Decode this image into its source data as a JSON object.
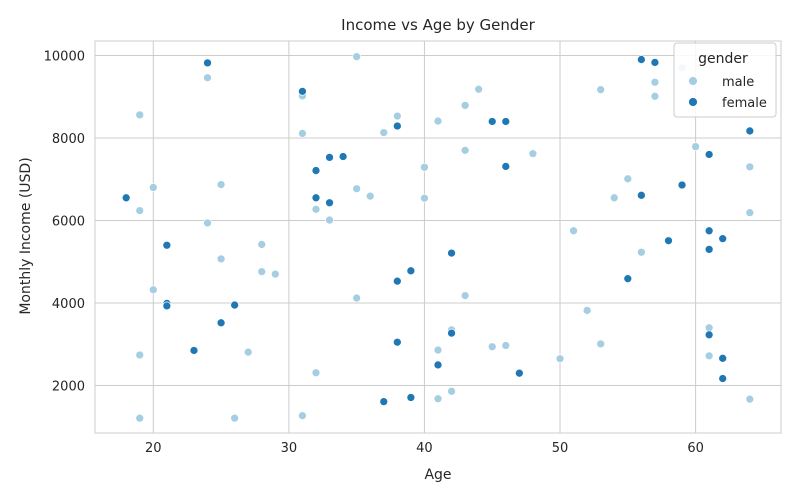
{
  "chart_data": {
    "type": "scatter",
    "title": "Income vs Age by Gender",
    "xlabel": "Age",
    "ylabel": "Monthly Income (USD)",
    "xlim": [
      15.7,
      66.3
    ],
    "ylim": [
      850,
      10350
    ],
    "xticks": [
      20,
      30,
      40,
      50,
      60
    ],
    "yticks": [
      2000,
      4000,
      6000,
      8000,
      10000
    ],
    "grid": true,
    "legend": {
      "title": "gender",
      "placement": "top-right"
    },
    "series": [
      {
        "name": "male",
        "color": "#a6cee3",
        "points": [
          [
            19,
            8560
          ],
          [
            19,
            6240
          ],
          [
            19,
            2740
          ],
          [
            19,
            1210
          ],
          [
            20,
            6800
          ],
          [
            20,
            4320
          ],
          [
            24,
            9460
          ],
          [
            24,
            5940
          ],
          [
            25,
            6870
          ],
          [
            25,
            5070
          ],
          [
            26,
            1210
          ],
          [
            27,
            2810
          ],
          [
            28,
            5420
          ],
          [
            28,
            4760
          ],
          [
            29,
            4700
          ],
          [
            31,
            9020
          ],
          [
            31,
            8110
          ],
          [
            31,
            1270
          ],
          [
            32,
            6270
          ],
          [
            32,
            2310
          ],
          [
            33,
            6010
          ],
          [
            35,
            9970
          ],
          [
            35,
            6770
          ],
          [
            35,
            4120
          ],
          [
            36,
            6590
          ],
          [
            37,
            8130
          ],
          [
            38,
            8530
          ],
          [
            40,
            7290
          ],
          [
            40,
            6540
          ],
          [
            41,
            8410
          ],
          [
            41,
            2860
          ],
          [
            41,
            1680
          ],
          [
            42,
            3350
          ],
          [
            42,
            1860
          ],
          [
            43,
            8790
          ],
          [
            43,
            7700
          ],
          [
            43,
            4180
          ],
          [
            44,
            9180
          ],
          [
            45,
            2940
          ],
          [
            46,
            2970
          ],
          [
            48,
            7620
          ],
          [
            50,
            2650
          ],
          [
            51,
            5750
          ],
          [
            52,
            3820
          ],
          [
            53,
            9170
          ],
          [
            53,
            3010
          ],
          [
            54,
            6550
          ],
          [
            55,
            7010
          ],
          [
            56,
            5230
          ],
          [
            57,
            9350
          ],
          [
            57,
            9010
          ],
          [
            59,
            9700
          ],
          [
            60,
            7790
          ],
          [
            61,
            3400
          ],
          [
            61,
            2720
          ],
          [
            64,
            7300
          ],
          [
            64,
            6190
          ],
          [
            64,
            1670
          ]
        ]
      },
      {
        "name": "female",
        "color": "#1f78b4",
        "points": [
          [
            18,
            6550
          ],
          [
            21,
            5400
          ],
          [
            21,
            3990
          ],
          [
            21,
            3930
          ],
          [
            23,
            2850
          ],
          [
            24,
            9820
          ],
          [
            25,
            3520
          ],
          [
            26,
            3950
          ],
          [
            31,
            9130
          ],
          [
            32,
            7210
          ],
          [
            32,
            6550
          ],
          [
            33,
            7530
          ],
          [
            33,
            6430
          ],
          [
            34,
            7550
          ],
          [
            37,
            1610
          ],
          [
            38,
            8290
          ],
          [
            38,
            4530
          ],
          [
            38,
            3050
          ],
          [
            39,
            4780
          ],
          [
            39,
            1710
          ],
          [
            41,
            2500
          ],
          [
            42,
            5210
          ],
          [
            42,
            3270
          ],
          [
            45,
            8400
          ],
          [
            46,
            8400
          ],
          [
            46,
            7310
          ],
          [
            47,
            2300
          ],
          [
            55,
            4590
          ],
          [
            56,
            9900
          ],
          [
            56,
            6610
          ],
          [
            57,
            9830
          ],
          [
            58,
            5510
          ],
          [
            59,
            6860
          ],
          [
            61,
            7600
          ],
          [
            61,
            5750
          ],
          [
            61,
            5300
          ],
          [
            61,
            3230
          ],
          [
            62,
            5560
          ],
          [
            62,
            2660
          ],
          [
            62,
            2170
          ],
          [
            64,
            8170
          ]
        ]
      }
    ]
  }
}
